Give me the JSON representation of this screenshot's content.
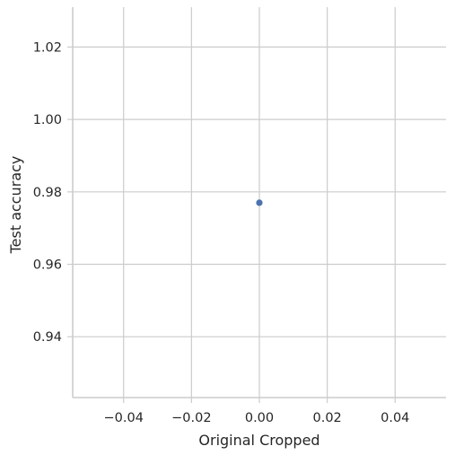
{
  "chart_data": {
    "type": "scatter",
    "title": "",
    "xlabel": "Original Cropped",
    "ylabel": "Test accuracy",
    "xlim": [
      -0.055,
      0.055
    ],
    "ylim": [
      0.9232,
      1.031
    ],
    "x_ticks": [
      -0.04,
      -0.02,
      0.0,
      0.02,
      0.04
    ],
    "x_tick_labels": [
      "−0.04",
      "−0.02",
      "0.00",
      "0.02",
      "0.04"
    ],
    "y_ticks": [
      0.94,
      0.96,
      0.98,
      1.0,
      1.02
    ],
    "y_tick_labels": [
      "0.94",
      "0.96",
      "0.98",
      "1.00",
      "1.02"
    ],
    "grid": true,
    "points": [
      {
        "x": 0.0,
        "y": 0.977
      }
    ],
    "marker_color": "#4c72b0"
  }
}
